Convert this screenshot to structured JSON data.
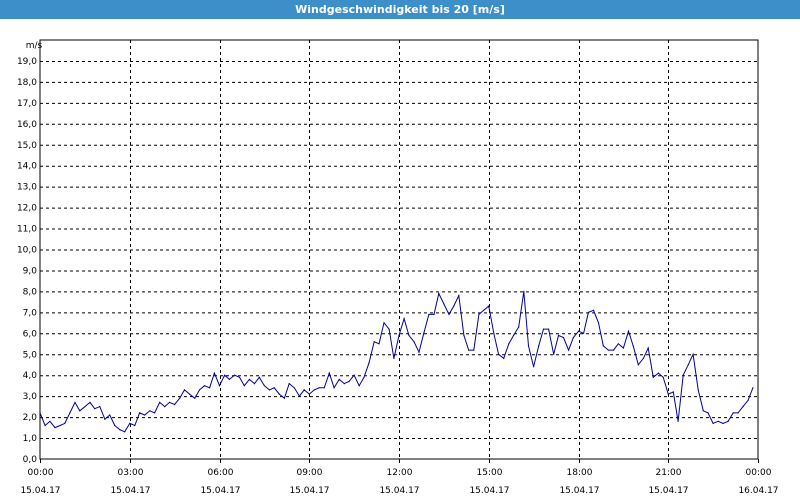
{
  "window": {
    "title": "Windgeschwindigkeit bis 20 [m/s]"
  },
  "chart_data": {
    "type": "line",
    "title": "Windgeschwindigkeit bis 20 [m/s]",
    "ylabel": "m/s",
    "xlabel": "",
    "ylim": [
      0,
      20
    ],
    "xlim": [
      0,
      24
    ],
    "grid": true,
    "line_color": "#0000a0",
    "y_ticks": [
      "0,0",
      "1,0",
      "2,0",
      "3,0",
      "4,0",
      "5,0",
      "6,0",
      "7,0",
      "8,0",
      "9,0",
      "10,0",
      "11,0",
      "12,0",
      "13,0",
      "14,0",
      "15,0",
      "16,0",
      "17,0",
      "18,0",
      "19,0"
    ],
    "x_ticks": [
      {
        "time": "00:00",
        "date": "15.04.17"
      },
      {
        "time": "03:00",
        "date": "15.04.17"
      },
      {
        "time": "06:00",
        "date": "15.04.17"
      },
      {
        "time": "09:00",
        "date": "15.04.17"
      },
      {
        "time": "12:00",
        "date": "15.04.17"
      },
      {
        "time": "15:00",
        "date": "15.04.17"
      },
      {
        "time": "18:00",
        "date": "15.04.17"
      },
      {
        "time": "21:00",
        "date": "15.04.17"
      },
      {
        "time": "00:00",
        "date": "16.04.17"
      }
    ],
    "series": [
      {
        "x": [
          0.0,
          0.17,
          0.33,
          0.5,
          0.67,
          0.83,
          1.0,
          1.17,
          1.33,
          1.5,
          1.67,
          1.83,
          2.0,
          2.17,
          2.33,
          2.5,
          2.67,
          2.83,
          3.0,
          3.17,
          3.33,
          3.5,
          3.67,
          3.83,
          4.0,
          4.17,
          4.33,
          4.5,
          4.67,
          4.83,
          5.0,
          5.17,
          5.33,
          5.5,
          5.67,
          5.83,
          6.0,
          6.17,
          6.33,
          6.5,
          6.67,
          6.83,
          7.0,
          7.17,
          7.33,
          7.5,
          7.67,
          7.83,
          8.0,
          8.17,
          8.33,
          8.5,
          8.67,
          8.83,
          9.0,
          9.17,
          9.33,
          9.5,
          9.67,
          9.83,
          10.0,
          10.17,
          10.33,
          10.5,
          10.67,
          10.83,
          11.0,
          11.17,
          11.33,
          11.5,
          11.67,
          11.83,
          12.0,
          12.17,
          12.33,
          12.5,
          12.67,
          12.83,
          13.0,
          13.17,
          13.33,
          13.5,
          13.67,
          13.83,
          14.0,
          14.17,
          14.33,
          14.5,
          14.67,
          14.83,
          15.0,
          15.17,
          15.33,
          15.5,
          15.67,
          15.83,
          16.0,
          16.17,
          16.33,
          16.5,
          16.67,
          16.83,
          17.0,
          17.17,
          17.33,
          17.5,
          17.67,
          17.83,
          18.0,
          18.17,
          18.33,
          18.5,
          18.67,
          18.83,
          19.0,
          19.17,
          19.33,
          19.5,
          19.67,
          19.83,
          20.0,
          20.17,
          20.33,
          20.5,
          20.67,
          20.83,
          21.0,
          21.17,
          21.33,
          21.5,
          21.67,
          21.83,
          22.0,
          22.17,
          22.33,
          22.5,
          22.67,
          22.83,
          23.0,
          23.17,
          23.33,
          23.5,
          23.67,
          23.83
        ],
        "values": [
          2.2,
          1.6,
          1.8,
          1.5,
          1.6,
          1.7,
          2.2,
          2.7,
          2.3,
          2.5,
          2.7,
          2.4,
          2.5,
          1.9,
          2.1,
          1.6,
          1.4,
          1.3,
          1.7,
          1.6,
          2.2,
          2.1,
          2.3,
          2.2,
          2.7,
          2.5,
          2.7,
          2.6,
          2.9,
          3.3,
          3.1,
          2.9,
          3.3,
          3.5,
          3.4,
          4.1,
          3.5,
          4.0,
          3.8,
          4.0,
          3.9,
          3.5,
          3.8,
          3.6,
          3.9,
          3.5,
          3.3,
          3.4,
          3.1,
          2.9,
          3.6,
          3.4,
          3.0,
          3.3,
          3.1,
          3.3,
          3.4,
          3.4,
          4.1,
          3.4,
          3.8,
          3.6,
          3.7,
          4.0,
          3.5,
          3.9,
          4.6,
          5.6,
          5.5,
          6.5,
          6.2,
          4.8,
          5.9,
          6.7,
          5.9,
          5.6,
          5.1,
          6.0,
          6.9,
          6.9,
          7.9,
          7.4,
          6.9,
          7.3,
          7.8,
          5.9,
          5.2,
          5.2,
          6.9,
          7.1,
          7.3,
          6.0,
          5.0,
          4.8,
          5.5,
          5.9,
          6.3,
          8.0,
          5.4,
          4.4,
          5.4,
          6.2,
          6.2,
          5.0,
          5.9,
          5.8,
          5.2,
          5.8,
          6.1,
          6.0,
          7.0,
          7.1,
          6.5,
          5.4,
          5.2,
          5.2,
          5.5,
          5.3,
          6.1,
          5.4,
          4.5,
          4.8,
          5.3,
          3.9,
          4.1,
          3.9,
          3.1,
          3.2,
          1.8,
          4.0,
          4.5,
          5.0,
          3.3,
          2.3,
          2.2,
          1.7,
          1.8,
          1.7,
          1.8,
          2.2,
          2.2,
          2.5,
          2.8,
          3.4
        ]
      }
    ]
  }
}
